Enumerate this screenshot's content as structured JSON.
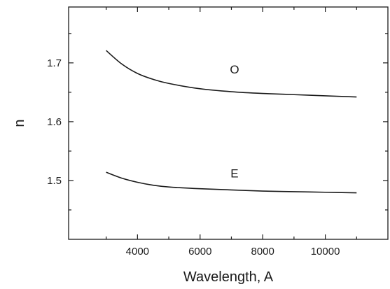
{
  "chart_data": {
    "type": "line",
    "title": "",
    "xlabel": "Wavelength, A",
    "ylabel": "n",
    "xlim": [
      1800,
      12000
    ],
    "ylim": [
      1.4,
      1.795
    ],
    "x_ticks": [
      4000,
      6000,
      8000,
      10000
    ],
    "x_tick_labels": [
      "4000",
      "6000",
      "8000",
      "10000"
    ],
    "x_minor_ticks": [
      3000,
      5000,
      7000,
      9000,
      11000
    ],
    "y_ticks": [
      1.5,
      1.6,
      1.7
    ],
    "y_tick_labels": [
      "1.5",
      "1.6",
      "1.7"
    ],
    "y_minor_ticks": [
      1.45,
      1.55,
      1.65,
      1.75
    ],
    "grid": false,
    "legend": "none",
    "series": [
      {
        "label": "O",
        "label_at": [
          7100,
          1.682
        ],
        "x": [
          3000,
          3500,
          4000,
          4500,
          5000,
          6000,
          7000,
          8000,
          9000,
          10000,
          11000
        ],
        "y": [
          1.721,
          1.698,
          1.682,
          1.672,
          1.665,
          1.656,
          1.651,
          1.648,
          1.646,
          1.644,
          1.642
        ]
      },
      {
        "label": "E",
        "label_at": [
          7100,
          1.505
        ],
        "x": [
          3000,
          3500,
          4000,
          4500,
          5000,
          6000,
          7000,
          8000,
          9000,
          10000,
          11000
        ],
        "y": [
          1.514,
          1.504,
          1.497,
          1.492,
          1.489,
          1.486,
          1.484,
          1.482,
          1.481,
          1.48,
          1.479
        ]
      }
    ]
  }
}
